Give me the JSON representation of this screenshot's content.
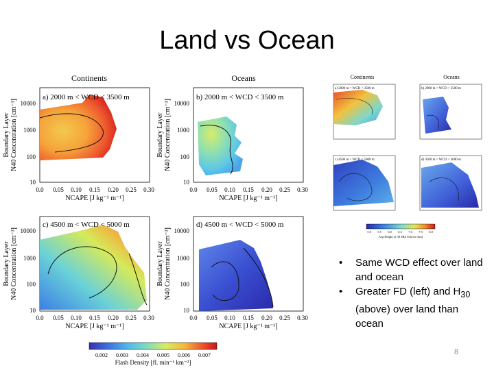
{
  "slide": {
    "title": "Land vs Ocean",
    "page_number": "8",
    "bullets": [
      {
        "text": "Same WCD effect over land and ocean"
      },
      {
        "pre": "Greater FD (left) and H",
        "sub": "30",
        "post": " (above) over land than ocean"
      }
    ]
  },
  "left_figure": {
    "col_titles": [
      "Continents",
      "Oceans"
    ],
    "panels": [
      {
        "label": "a) 2000 m < WCD < 3500 m"
      },
      {
        "label": "b) 2000 m < WCD < 3500 m"
      },
      {
        "label": "c) 4500 m < WCD < 5000 m"
      },
      {
        "label": "d) 4500 m < WCD < 5000 m"
      }
    ],
    "ylabel_1": "Boundary Layer",
    "ylabel_2": "N40 Concentration [cm⁻³]",
    "xlabel": "NCAPE [J kg⁻¹ m⁻¹]",
    "y_ticks": [
      "10000",
      "1000",
      "100",
      "10"
    ],
    "x_ticks": [
      "0.0",
      "0.05",
      "0.10",
      "0.15",
      "0.20",
      "0.25",
      "0.30"
    ],
    "colorbar_ticks": [
      "0.002",
      "0.003",
      "0.004",
      "0.005",
      "0.006",
      "0.007"
    ],
    "colorbar_label": "Flash Density [fl. min⁻¹ km⁻²]"
  },
  "right_figure": {
    "col_titles": [
      "Continents",
      "Oceans"
    ],
    "panels": [
      {
        "label": "a) 2000 m < WCD < 3500 m"
      },
      {
        "label": "b) 2000 m < WCD < 3500 m"
      },
      {
        "label": "c) 4500 m < WCD < 5000 m"
      },
      {
        "label": "d) 4500 m < WCD < 5000 m"
      }
    ],
    "colorbar_ticks": [
      "5.0",
      "5.5",
      "6.0",
      "6.5",
      "7.0",
      "7.5",
      "8.0"
    ],
    "colorbar_label": "Avg Height of 30 dBZ Echoes [km]"
  }
}
